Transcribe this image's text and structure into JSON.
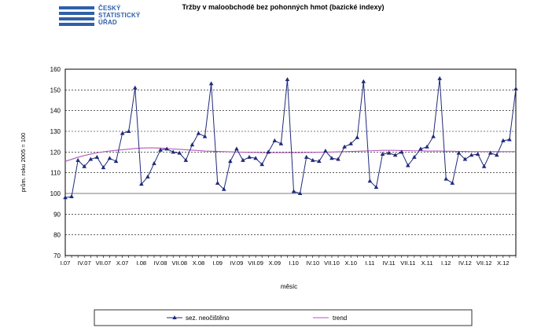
{
  "logo": {
    "lines": [
      "ČESKÝ",
      "STATISTICKÝ",
      "ÚŘAD"
    ]
  },
  "chart_data": {
    "type": "line",
    "title": "Tržby v maloobchodě  bez pohonných  hmot (bazické indexy)",
    "xlabel": "měsíc",
    "ylabel": "prům. roku 2005 = 100",
    "ylim": [
      70,
      160
    ],
    "yticks": [
      70,
      80,
      90,
      100,
      110,
      120,
      130,
      140,
      150,
      160
    ],
    "grid": true,
    "legend": "bottom",
    "x_tick_labels": [
      "I.07",
      "IV.07",
      "VII.07",
      "X.07",
      "I.08",
      "IV.08",
      "VII.08",
      "X.08",
      "I.09",
      "IV.09",
      "VII.09",
      "X.09",
      "I.10",
      "IV.10",
      "VII.10",
      "X.10",
      "I.11",
      "IV.11",
      "VII.11",
      "X.11",
      "I.12",
      "IV.12",
      "VII.12",
      "X.12"
    ],
    "categories": [
      "I.07",
      "II.07",
      "III.07",
      "IV.07",
      "V.07",
      "VI.07",
      "VII.07",
      "VIII.07",
      "IX.07",
      "X.07",
      "XI.07",
      "XII.07",
      "I.08",
      "II.08",
      "III.08",
      "IV.08",
      "V.08",
      "VI.08",
      "VII.08",
      "VIII.08",
      "IX.08",
      "X.08",
      "XI.08",
      "XII.08",
      "I.09",
      "II.09",
      "III.09",
      "IV.09",
      "V.09",
      "VI.09",
      "VII.09",
      "VIII.09",
      "IX.09",
      "X.09",
      "XI.09",
      "XII.09",
      "I.10",
      "II.10",
      "III.10",
      "IV.10",
      "V.10",
      "VI.10",
      "VII.10",
      "VIII.10",
      "IX.10",
      "X.10",
      "XI.10",
      "XII.10",
      "I.11",
      "II.11",
      "III.11",
      "IV.11",
      "V.11",
      "VI.11",
      "VII.11",
      "VIII.11",
      "IX.11",
      "X.11",
      "XI.11",
      "XII.11",
      "I.12",
      "II.12",
      "III.12",
      "IV.12",
      "V.12",
      "VI.12",
      "VII.12",
      "VIII.12",
      "IX.12",
      "X.12",
      "XI.12",
      "XII.12"
    ],
    "series": [
      {
        "name": "sez. neočištěno",
        "color": "#1f2a7a",
        "marker": "triangle",
        "values": [
          98,
          98.5,
          116,
          113,
          116.5,
          117.5,
          112.5,
          117,
          115.5,
          129,
          130,
          151,
          104.5,
          108,
          114.5,
          121,
          121.5,
          120,
          119.5,
          116,
          123.5,
          129,
          127.5,
          153,
          105,
          102,
          115.5,
          121.5,
          116,
          117.5,
          117,
          114,
          120,
          125.5,
          124,
          155,
          101,
          100,
          117.5,
          116,
          115.5,
          120.5,
          117,
          116.5,
          122.5,
          124,
          127,
          154,
          106,
          103,
          119,
          119.5,
          118.5,
          120,
          113.5,
          117.5,
          121.5,
          122.5,
          127.5,
          155.5,
          107,
          105,
          119.5,
          116.5,
          118.5,
          119,
          113,
          119.5,
          118.5,
          125.5,
          126,
          150.5
        ]
      },
      {
        "name": "trend",
        "color": "#b05ab8",
        "values": [
          115.5,
          116.5,
          117.5,
          118.3,
          119.0,
          119.6,
          120.1,
          120.5,
          120.8,
          121.1,
          121.4,
          121.7,
          121.9,
          122.0,
          122.0,
          121.9,
          121.7,
          121.5,
          121.3,
          121.1,
          120.9,
          120.7,
          120.5,
          120.4,
          120.3,
          120.2,
          120.1,
          120.0,
          119.9,
          119.8,
          119.8,
          119.7,
          119.7,
          119.7,
          119.7,
          119.7,
          119.7,
          119.7,
          119.8,
          119.8,
          119.9,
          119.9,
          120.0,
          120.1,
          120.2,
          120.3,
          120.4,
          120.5,
          120.6,
          120.7,
          120.8,
          120.8,
          120.8,
          120.7,
          120.7,
          120.6,
          120.6,
          120.5,
          120.5,
          120.5,
          120.4,
          120.4,
          120.3,
          120.3,
          120.2,
          120.2,
          120.2,
          120.2,
          120.2,
          120.2,
          120.2,
          120.2
        ]
      }
    ]
  }
}
